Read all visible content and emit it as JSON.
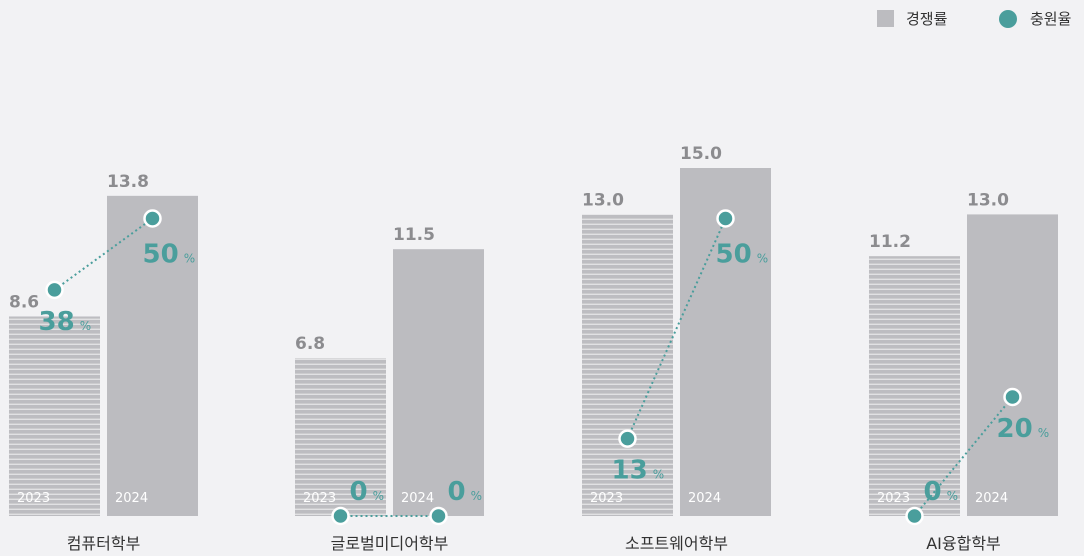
{
  "chart_data": {
    "type": "bar",
    "categories": [
      "컴퓨터학부",
      "글로벌미디어학부",
      "소프트웨어학부",
      "AI융합학부"
    ],
    "years": [
      "2023",
      "2024"
    ],
    "series": [
      {
        "name": "경쟁률",
        "kind": "bar",
        "values_by_year": {
          "2023": [
            8.6,
            6.8,
            13.0,
            11.2
          ],
          "2024": [
            13.8,
            11.5,
            15.0,
            13.0
          ]
        },
        "labels_by_year": {
          "2023": [
            "8.6",
            "6.8",
            "13.0",
            "11.2"
          ],
          "2024": [
            "13.8",
            "11.5",
            "15.0",
            "13.0"
          ]
        }
      },
      {
        "name": "충원율",
        "kind": "line",
        "unit": "%",
        "values_by_year": {
          "2023": [
            38,
            0,
            13,
            0
          ],
          "2024": [
            50,
            0,
            50,
            20
          ]
        }
      }
    ],
    "ylim": [
      0,
      15.8
    ],
    "legend": [
      "경쟁률",
      "충원율"
    ],
    "legend_position": "top-right",
    "colors": {
      "bar_2023": "#bdbdc1",
      "bar_2024": "#bcbcc0",
      "stripe": "#ffffff",
      "rate": "#4a9e9c",
      "value_text": "#8c8c8f",
      "background": "#f2f2f4"
    }
  }
}
